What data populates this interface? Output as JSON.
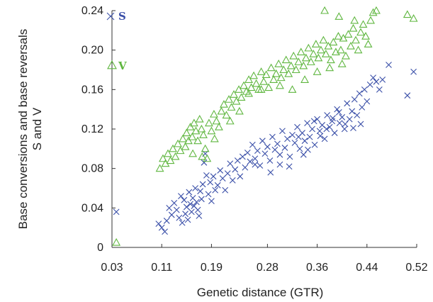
{
  "chart_data": {
    "type": "scatter",
    "xlabel": "Genetic distance (GTR)",
    "ylabel": [
      "Base conversions and base reversals",
      "S and V"
    ],
    "xlim": [
      0.03,
      0.52
    ],
    "ylim": [
      0,
      0.24
    ],
    "x_ticks": [
      "0.03",
      "0.11",
      "0.19",
      "0.28",
      "0.36",
      "0.44",
      "0.52"
    ],
    "y_ticks": [
      "0",
      "0.04",
      "0.08",
      "0.12",
      "0.16",
      "0.20",
      "0.24"
    ],
    "grid": false,
    "legend_position": "top-left",
    "series": [
      {
        "name": "S",
        "marker": "x",
        "color": "#3a4fa8",
        "points": [
          [
            0.037,
            0.036
          ],
          [
            0.105,
            0.024
          ],
          [
            0.11,
            0.02
          ],
          [
            0.115,
            0.016
          ],
          [
            0.118,
            0.027
          ],
          [
            0.122,
            0.04
          ],
          [
            0.126,
            0.033
          ],
          [
            0.13,
            0.045
          ],
          [
            0.134,
            0.038
          ],
          [
            0.138,
            0.03
          ],
          [
            0.141,
            0.052
          ],
          [
            0.143,
            0.025
          ],
          [
            0.146,
            0.048
          ],
          [
            0.148,
            0.034
          ],
          [
            0.15,
            0.041
          ],
          [
            0.152,
            0.028
          ],
          [
            0.154,
            0.056
          ],
          [
            0.156,
            0.044
          ],
          [
            0.158,
            0.036
          ],
          [
            0.16,
            0.05
          ],
          [
            0.162,
            0.042
          ],
          [
            0.164,
            0.06
          ],
          [
            0.166,
            0.046
          ],
          [
            0.168,
            0.038
          ],
          [
            0.17,
            0.032
          ],
          [
            0.172,
            0.057
          ],
          [
            0.174,
            0.049
          ],
          [
            0.176,
            0.064
          ],
          [
            0.178,
            0.086
          ],
          [
            0.18,
            0.095
          ],
          [
            0.182,
            0.073
          ],
          [
            0.185,
            0.054
          ],
          [
            0.188,
            0.066
          ],
          [
            0.19,
            0.047
          ],
          [
            0.193,
            0.072
          ],
          [
            0.196,
            0.058
          ],
          [
            0.2,
            0.063
          ],
          [
            0.204,
            0.078
          ],
          [
            0.208,
            0.07
          ],
          [
            0.212,
            0.058
          ],
          [
            0.216,
            0.075
          ],
          [
            0.22,
            0.085
          ],
          [
            0.224,
            0.068
          ],
          [
            0.228,
            0.079
          ],
          [
            0.232,
            0.088
          ],
          [
            0.236,
            0.072
          ],
          [
            0.24,
            0.092
          ],
          [
            0.244,
            0.081
          ],
          [
            0.248,
            0.096
          ],
          [
            0.252,
            0.087
          ],
          [
            0.256,
            0.104
          ],
          [
            0.26,
            0.09
          ],
          [
            0.264,
            0.098
          ],
          [
            0.268,
            0.083
          ],
          [
            0.272,
            0.108
          ],
          [
            0.276,
            0.095
          ],
          [
            0.28,
            0.102
          ],
          [
            0.284,
            0.088
          ],
          [
            0.288,
            0.112
          ],
          [
            0.292,
            0.099
          ],
          [
            0.296,
            0.105
          ],
          [
            0.3,
            0.094
          ],
          [
            0.304,
            0.118
          ],
          [
            0.308,
            0.101
          ],
          [
            0.312,
            0.11
          ],
          [
            0.316,
            0.092
          ],
          [
            0.32,
            0.114
          ],
          [
            0.324,
            0.106
          ],
          [
            0.328,
            0.122
          ],
          [
            0.332,
            0.1
          ],
          [
            0.336,
            0.116
          ],
          [
            0.34,
            0.108
          ],
          [
            0.344,
            0.126
          ],
          [
            0.348,
            0.112
          ],
          [
            0.352,
            0.12
          ],
          [
            0.356,
            0.104
          ],
          [
            0.36,
            0.13
          ],
          [
            0.364,
            0.118
          ],
          [
            0.368,
            0.124
          ],
          [
            0.372,
            0.11
          ],
          [
            0.376,
            0.134
          ],
          [
            0.38,
            0.122
          ],
          [
            0.384,
            0.128
          ],
          [
            0.388,
            0.116
          ],
          [
            0.392,
            0.14
          ],
          [
            0.396,
            0.126
          ],
          [
            0.4,
            0.132
          ],
          [
            0.404,
            0.12
          ],
          [
            0.408,
            0.146
          ],
          [
            0.412,
            0.13
          ],
          [
            0.416,
            0.138
          ],
          [
            0.42,
            0.15
          ],
          [
            0.424,
            0.134
          ],
          [
            0.428,
            0.156
          ],
          [
            0.432,
            0.142
          ],
          [
            0.436,
            0.16
          ],
          [
            0.44,
            0.148
          ],
          [
            0.445,
            0.165
          ],
          [
            0.45,
            0.172
          ],
          [
            0.455,
            0.168
          ],
          [
            0.46,
            0.16
          ],
          [
            0.465,
            0.17
          ],
          [
            0.475,
            0.185
          ],
          [
            0.505,
            0.154
          ],
          [
            0.515,
            0.178
          ],
          [
            0.26,
            0.084
          ],
          [
            0.3,
            0.084
          ],
          [
            0.33,
            0.112
          ],
          [
            0.345,
            0.099
          ],
          [
            0.355,
            0.128
          ],
          [
            0.365,
            0.113
          ],
          [
            0.375,
            0.12
          ],
          [
            0.385,
            0.131
          ],
          [
            0.395,
            0.137
          ],
          [
            0.405,
            0.125
          ],
          [
            0.418,
            0.121
          ],
          [
            0.43,
            0.125
          ],
          [
            0.285,
            0.076
          ],
          [
            0.315,
            0.082
          ],
          [
            0.338,
            0.094
          ]
        ]
      },
      {
        "name": "V",
        "marker": "triangle",
        "color": "#5fb63f",
        "points": [
          [
            0.037,
            0.005
          ],
          [
            0.107,
            0.08
          ],
          [
            0.112,
            0.09
          ],
          [
            0.116,
            0.085
          ],
          [
            0.12,
            0.095
          ],
          [
            0.124,
            0.088
          ],
          [
            0.128,
            0.1
          ],
          [
            0.132,
            0.092
          ],
          [
            0.136,
            0.105
          ],
          [
            0.14,
            0.098
          ],
          [
            0.144,
            0.11
          ],
          [
            0.148,
            0.102
          ],
          [
            0.15,
            0.116
          ],
          [
            0.153,
            0.108
          ],
          [
            0.156,
            0.122
          ],
          [
            0.159,
            0.112
          ],
          [
            0.162,
            0.126
          ],
          [
            0.165,
            0.118
          ],
          [
            0.168,
            0.108
          ],
          [
            0.171,
            0.13
          ],
          [
            0.174,
            0.12
          ],
          [
            0.177,
            0.114
          ],
          [
            0.18,
            0.1
          ],
          [
            0.183,
            0.09
          ],
          [
            0.186,
            0.126
          ],
          [
            0.19,
            0.118
          ],
          [
            0.194,
            0.135
          ],
          [
            0.198,
            0.128
          ],
          [
            0.202,
            0.122
          ],
          [
            0.206,
            0.138
          ],
          [
            0.21,
            0.145
          ],
          [
            0.214,
            0.134
          ],
          [
            0.218,
            0.15
          ],
          [
            0.222,
            0.142
          ],
          [
            0.226,
            0.155
          ],
          [
            0.23,
            0.148
          ],
          [
            0.234,
            0.16
          ],
          [
            0.238,
            0.152
          ],
          [
            0.242,
            0.164
          ],
          [
            0.246,
            0.158
          ],
          [
            0.25,
            0.17
          ],
          [
            0.254,
            0.162
          ],
          [
            0.258,
            0.174
          ],
          [
            0.262,
            0.166
          ],
          [
            0.266,
            0.16
          ],
          [
            0.27,
            0.178
          ],
          [
            0.274,
            0.168
          ],
          [
            0.278,
            0.175
          ],
          [
            0.282,
            0.162
          ],
          [
            0.286,
            0.182
          ],
          [
            0.29,
            0.17
          ],
          [
            0.294,
            0.176
          ],
          [
            0.298,
            0.186
          ],
          [
            0.302,
            0.172
          ],
          [
            0.306,
            0.18
          ],
          [
            0.31,
            0.19
          ],
          [
            0.314,
            0.176
          ],
          [
            0.318,
            0.184
          ],
          [
            0.322,
            0.194
          ],
          [
            0.326,
            0.18
          ],
          [
            0.33,
            0.188
          ],
          [
            0.334,
            0.198
          ],
          [
            0.338,
            0.184
          ],
          [
            0.342,
            0.192
          ],
          [
            0.346,
            0.202
          ],
          [
            0.35,
            0.188
          ],
          [
            0.354,
            0.196
          ],
          [
            0.358,
            0.206
          ],
          [
            0.362,
            0.192
          ],
          [
            0.366,
            0.2
          ],
          [
            0.37,
            0.21
          ],
          [
            0.374,
            0.196
          ],
          [
            0.378,
            0.204
          ],
          [
            0.382,
            0.19
          ],
          [
            0.386,
            0.208
          ],
          [
            0.39,
            0.198
          ],
          [
            0.394,
            0.214
          ],
          [
            0.398,
            0.2
          ],
          [
            0.402,
            0.212
          ],
          [
            0.406,
            0.194
          ],
          [
            0.41,
            0.216
          ],
          [
            0.414,
            0.204
          ],
          [
            0.418,
            0.222
          ],
          [
            0.422,
            0.21
          ],
          [
            0.426,
            0.2
          ],
          [
            0.43,
            0.218
          ],
          [
            0.434,
            0.226
          ],
          [
            0.438,
            0.214
          ],
          [
            0.442,
            0.206
          ],
          [
            0.446,
            0.23
          ],
          [
            0.45,
            0.238
          ],
          [
            0.455,
            0.24
          ],
          [
            0.372,
            0.24
          ],
          [
            0.395,
            0.234
          ],
          [
            0.42,
            0.23
          ],
          [
            0.505,
            0.236
          ],
          [
            0.515,
            0.232
          ],
          [
            0.25,
            0.156
          ],
          [
            0.27,
            0.16
          ],
          [
            0.3,
            0.164
          ],
          [
            0.32,
            0.16
          ],
          [
            0.34,
            0.17
          ],
          [
            0.36,
            0.178
          ],
          [
            0.38,
            0.182
          ],
          [
            0.4,
            0.186
          ],
          [
            0.22,
            0.128
          ],
          [
            0.235,
            0.138
          ],
          [
            0.16,
            0.095
          ],
          [
            0.175,
            0.092
          ],
          [
            0.195,
            0.11
          ]
        ]
      }
    ]
  }
}
